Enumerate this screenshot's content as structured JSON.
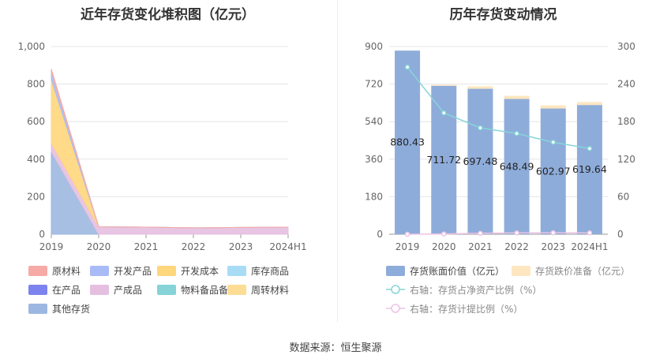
{
  "source_text": "数据来源：恒生聚源",
  "chart_data": [
    {
      "type": "area",
      "stacked": true,
      "title": "近年存货变化堆积图（亿元）",
      "categories": [
        "2019",
        "2020",
        "2021",
        "2022",
        "2023",
        "2024H1"
      ],
      "ylim": [
        0,
        1000
      ],
      "yticks": [
        "0",
        "200",
        "400",
        "600",
        "800",
        "1,000"
      ],
      "grid": true,
      "legend_position": "bottom",
      "series": [
        {
          "name": "其他存货",
          "color": "#9db8e0",
          "values": [
            440,
            0,
            0,
            0,
            0,
            0
          ]
        },
        {
          "name": "在产品",
          "color": "#7d83ee",
          "values": [
            0,
            0,
            0,
            0,
            0,
            0
          ]
        },
        {
          "name": "物料备品备件",
          "color": "#86d3d8",
          "values": [
            0,
            0,
            0,
            0,
            0,
            0
          ]
        },
        {
          "name": "产成品",
          "color": "#e5bfe0",
          "values": [
            45,
            40,
            38,
            34,
            36,
            38
          ]
        },
        {
          "name": "开发成本",
          "color": "#fed67c",
          "values": [
            340,
            0,
            0,
            0,
            0,
            0
          ]
        },
        {
          "name": "周转材料",
          "color": "#fddc95",
          "values": [
            0,
            0,
            0,
            0,
            0,
            0
          ]
        },
        {
          "name": "库存商品",
          "color": "#a8dcf5",
          "values": [
            0,
            0,
            0,
            0,
            0,
            0
          ]
        },
        {
          "name": "开发产品",
          "color": "#a8bbf7",
          "values": [
            40,
            0,
            0,
            0,
            0,
            0
          ]
        },
        {
          "name": "原材料",
          "color": "#f6aaa6",
          "values": [
            15,
            0,
            0,
            0,
            0,
            0
          ]
        }
      ],
      "legend_order": [
        "原材料",
        "开发产品",
        "开发成本",
        "库存商品",
        "在产品",
        "产成品",
        "物料备品备件",
        "周转材料",
        "其他存货"
      ]
    },
    {
      "type": "bar",
      "title": "历年存货变动情况",
      "categories": [
        "2019",
        "2020",
        "2021",
        "2022",
        "2023",
        "2024H1"
      ],
      "ylim": [
        0,
        900
      ],
      "yticks": [
        "0",
        "180",
        "360",
        "540",
        "720",
        "900"
      ],
      "y2lim": [
        0,
        300
      ],
      "y2ticks": [
        "0",
        "60",
        "120",
        "180",
        "240",
        "300"
      ],
      "grid": true,
      "legend_position": "bottom",
      "series": [
        {
          "name": "存货账面价值（亿元）",
          "color": "#8eacda",
          "values": [
            880.43,
            711.72,
            697.48,
            648.49,
            602.97,
            619.64
          ],
          "labels": [
            "880.43",
            "711.72",
            "697.48",
            "648.49",
            "602.97",
            "619.64"
          ]
        },
        {
          "name": "存货跌价准备（亿元）",
          "color": "#fde6c0",
          "values": [
            0,
            5,
            12,
            15,
            15,
            14
          ]
        },
        {
          "name": "右轴：存货占净资产比例（%）",
          "color": "#86d5d8",
          "axis": "right",
          "values": [
            267,
            194,
            170,
            161,
            147,
            137
          ]
        },
        {
          "name": "右轴：存货计提比例（%）",
          "color": "#ebc4e4",
          "axis": "right",
          "values": [
            0,
            0.5,
            1.5,
            2.2,
            2.4,
            2.2
          ]
        }
      ]
    }
  ]
}
